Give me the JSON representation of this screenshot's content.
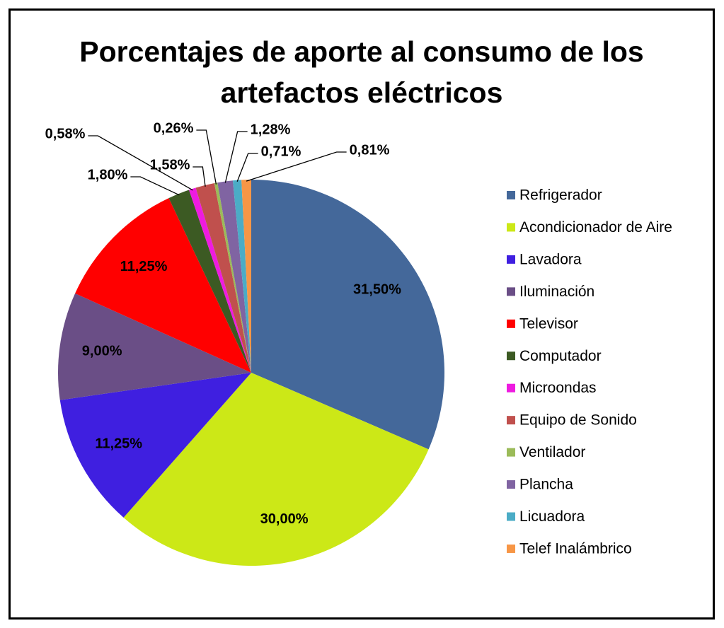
{
  "chart_data": {
    "type": "pie",
    "title": "Porcentajes de aporte al consumo de los artefactos eléctricos",
    "categories": [
      "Refrigerador",
      "Acondicionador de Aire",
      "Lavadora",
      "Iluminación",
      "Televisor",
      "Computador",
      "Microondas",
      "Equipo de Sonido",
      "Ventilador",
      "Plancha",
      "Licuadora",
      "Telef Inalámbrico"
    ],
    "values": [
      31.5,
      30.0,
      11.25,
      9.0,
      11.25,
      1.8,
      0.58,
      1.58,
      0.26,
      1.28,
      0.71,
      0.81
    ],
    "value_labels": [
      "31,50%",
      "30,00%",
      "11,25%",
      "9,00%",
      "11,25%",
      "1,80%",
      "0,58%",
      "1,58%",
      "0,26%",
      "1,28%",
      "0,71%",
      "0,81%"
    ],
    "colors": [
      "#44689a",
      "#cce817",
      "#3f1fe0",
      "#6a4e86",
      "#ff0000",
      "#3c5a23",
      "#ee1be0",
      "#c0504d",
      "#9bbb59",
      "#8064a2",
      "#4bacc6",
      "#f79646"
    ],
    "legend": "right"
  }
}
